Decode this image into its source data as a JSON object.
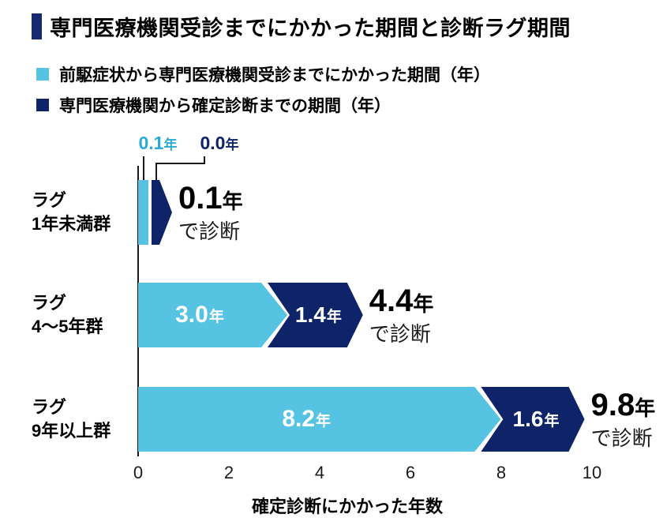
{
  "title": "専門医療機関受診までにかかった期間と診断ラグ期間",
  "legend": [
    {
      "label": "前駆症状から専門医療機関受診までにかかった期間（年）",
      "color": "#57c3e2"
    },
    {
      "label": "専門医療機関から確定診断までの期間（年）",
      "color": "#0f2468"
    }
  ],
  "colors": {
    "light_blue": "#57c3e2",
    "navy": "#0f2468",
    "title_marker": "#16296f",
    "callout_blue_text": "#2aaad6",
    "callout_navy_text": "#0f2468",
    "line": "#1a1a1a"
  },
  "chart_data": {
    "type": "bar",
    "orientation": "horizontal",
    "stacked": true,
    "categories": [
      "ラグ 1年未満群",
      "ラグ 4～5年群",
      "ラグ 9年以上群"
    ],
    "series": [
      {
        "name": "前駆症状から専門医療機関受診までにかかった期間（年）",
        "values": [
          0.1,
          3.0,
          8.2
        ]
      },
      {
        "name": "専門医療機関から確定診断までの期間（年）",
        "values": [
          0.0,
          1.4,
          1.6
        ]
      }
    ],
    "totals": [
      0.1,
      4.4,
      9.8
    ],
    "xlabel": "確定診断にかかった年数",
    "xlim": [
      0,
      10
    ],
    "xticks": [
      0,
      2,
      4,
      6,
      8,
      10
    ],
    "grid": false,
    "legend_position": "top"
  },
  "rows": [
    {
      "group_lines": [
        "ラグ",
        "1年未満群"
      ],
      "blue_value": 0.1,
      "navy_value": 0.0,
      "blue_label": {
        "num": "0.1",
        "unit": "年"
      },
      "navy_label": {
        "num": "0.0",
        "unit": "年"
      },
      "total": {
        "num": "0.1",
        "unit": "年"
      },
      "total_caption": "で診断",
      "labels_as_callout": true
    },
    {
      "group_lines": [
        "ラグ",
        "4～5年群"
      ],
      "blue_value": 3.0,
      "navy_value": 1.4,
      "blue_label": {
        "num": "3.0",
        "unit": "年"
      },
      "navy_label": {
        "num": "1.4",
        "unit": "年"
      },
      "total": {
        "num": "4.4",
        "unit": "年"
      },
      "total_caption": "で診断",
      "labels_as_callout": false
    },
    {
      "group_lines": [
        "ラグ",
        "9年以上群"
      ],
      "blue_value": 8.2,
      "navy_value": 1.6,
      "blue_label": {
        "num": "8.2",
        "unit": "年"
      },
      "navy_label": {
        "num": "1.6",
        "unit": "年"
      },
      "total": {
        "num": "9.8",
        "unit": "年"
      },
      "total_caption": "で診断",
      "labels_as_callout": false
    }
  ],
  "axis": {
    "ticks": [
      "0",
      "2",
      "4",
      "6",
      "8",
      "10"
    ],
    "label": "確定診断にかかった年数"
  }
}
